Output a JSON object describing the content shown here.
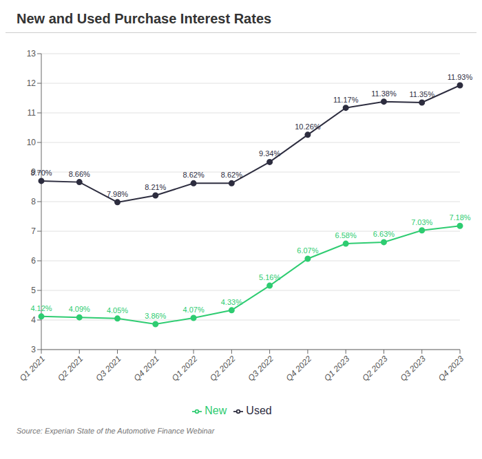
{
  "chart_data": {
    "type": "line",
    "title": "New and Used Purchase Interest Rates",
    "source": "Source: Experian State of the Automotive Finance Webinar",
    "categories": [
      "Q1 2021",
      "Q2 2021",
      "Q3 2021",
      "Q4 2021",
      "Q1 2022",
      "Q2 2022",
      "Q3 2022",
      "Q4 2022",
      "Q1 2023",
      "Q2 2023",
      "Q3 2023",
      "Q4 2023"
    ],
    "series": [
      {
        "name": "New",
        "color": "#2ecc71",
        "marker": "circle",
        "line_style": "solid",
        "values": [
          4.12,
          4.09,
          4.05,
          3.86,
          4.07,
          4.33,
          5.16,
          6.07,
          6.58,
          6.63,
          7.03,
          7.18
        ],
        "value_labels": [
          "4.12%",
          "4.09%",
          "4.05%",
          "3.86%",
          "4.07%",
          "4.33%",
          "5.16%",
          "6.07%",
          "6.58%",
          "6.63%",
          "7.03%",
          "7.18%"
        ]
      },
      {
        "name": "Used",
        "color": "#2d2d3f",
        "marker": "circle",
        "line_style": "solid",
        "values": [
          8.7,
          8.66,
          7.98,
          8.21,
          8.62,
          8.62,
          9.34,
          10.26,
          11.17,
          11.38,
          11.35,
          11.93
        ],
        "value_labels": [
          "8.70%",
          "8.66%",
          "7.98%",
          "8.21%",
          "8.62%",
          "8.62%",
          "9.34%",
          "10.26%",
          "11.17%",
          "11.38%",
          "11.35%",
          "11.93%"
        ]
      }
    ],
    "ylim": [
      3,
      13
    ],
    "yticks": [
      3,
      4,
      5,
      6,
      7,
      8,
      9,
      10,
      11,
      12,
      13
    ],
    "grid": true,
    "legend": "bottom",
    "data_labels": true
  }
}
